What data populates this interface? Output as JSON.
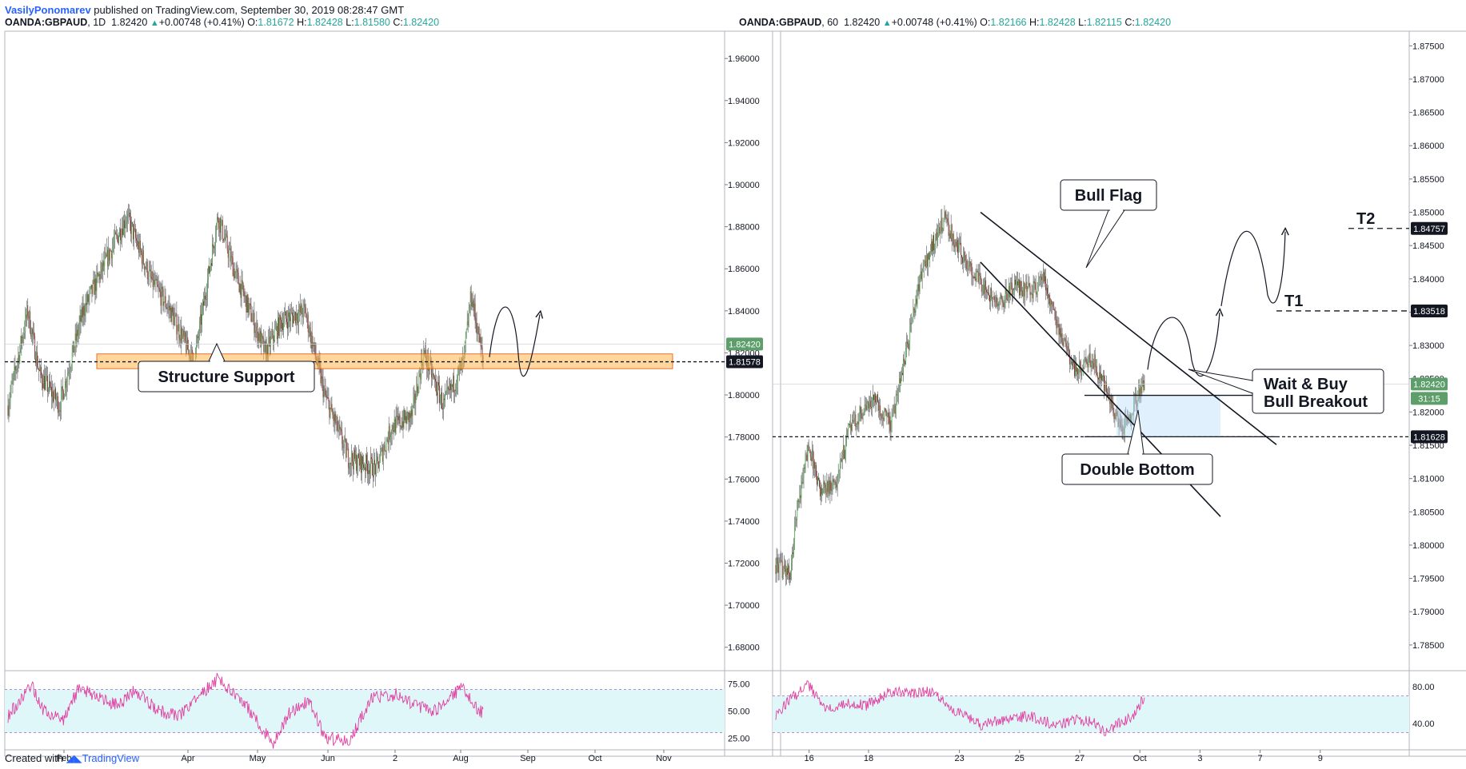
{
  "header": {
    "author": "VasilyPonomarev",
    "published_text": "published on TradingView.com, September 30, 2019 08:28:47 GMT"
  },
  "footer": {
    "created_with": "Created with",
    "brand": "TradingView"
  },
  "colors": {
    "up": "#26a69a",
    "down": "#ef5350",
    "candle_up_body": "#4caf50",
    "candle_down_body": "#8b1a1a",
    "rsi_line": "#e040a0",
    "rsi_band": "#e0f7fa",
    "support_zone": "#ffb74d",
    "target_box": "#bbdefb",
    "price_tag_green": "#5d9e6a",
    "price_tag_black": "#131722"
  },
  "chart_data": [
    {
      "type": "candlestick",
      "symbol": "OANDA:GBPAUD",
      "interval": "1D",
      "legend": {
        "last": "1.82420",
        "change": "+0.00748 (+0.41%)",
        "open": "1.81672",
        "high": "1.82428",
        "low": "1.81580",
        "close": "1.82420"
      },
      "y_ticks": [
        "1.96000",
        "1.94000",
        "1.92000",
        "1.90000",
        "1.88000",
        "1.86000",
        "1.84000",
        "1.82000",
        "1.80000",
        "1.78000",
        "1.76000",
        "1.74000",
        "1.72000",
        "1.70000",
        "1.68000"
      ],
      "ylim": [
        1.67,
        1.973
      ],
      "x_ticks": [
        "Feb",
        "Apr",
        "May",
        "Jun",
        "2",
        "Aug",
        "Sep",
        "Oct",
        "Nov"
      ],
      "price_tags": [
        {
          "value": 1.8242,
          "label": "1.82420",
          "style": "green"
        },
        {
          "value": 1.81578,
          "label": "1.81578",
          "style": "black"
        }
      ],
      "anchors": [
        [
          0,
          1.795
        ],
        [
          25,
          1.84
        ],
        [
          40,
          1.81
        ],
        [
          65,
          1.795
        ],
        [
          95,
          1.84
        ],
        [
          150,
          1.885
        ],
        [
          180,
          1.855
        ],
        [
          205,
          1.84
        ],
        [
          235,
          1.815
        ],
        [
          265,
          1.885
        ],
        [
          285,
          1.86
        ],
        [
          325,
          1.82
        ],
        [
          345,
          1.835
        ],
        [
          375,
          1.84
        ],
        [
          400,
          1.8
        ],
        [
          430,
          1.77
        ],
        [
          465,
          1.765
        ],
        [
          485,
          1.785
        ],
        [
          510,
          1.79
        ],
        [
          525,
          1.82
        ],
        [
          550,
          1.795
        ],
        [
          575,
          1.815
        ],
        [
          585,
          1.848
        ],
        [
          600,
          1.816
        ]
      ],
      "support_zone": [
        1.8125,
        1.8195
      ],
      "annotations": [
        {
          "text": "Structure Support"
        }
      ],
      "projection": [
        [
          1.8195,
          0
        ],
        [
          1.83,
          0.5
        ],
        [
          1.836,
          1
        ]
      ],
      "rsi": {
        "y_ticks": [
          "75.00",
          "50.00",
          "25.00"
        ],
        "ylim": [
          15,
          85
        ],
        "band": [
          30,
          70
        ],
        "anchors": [
          [
            0,
            45
          ],
          [
            30,
            75
          ],
          [
            45,
            50
          ],
          [
            70,
            42
          ],
          [
            90,
            72
          ],
          [
            115,
            62
          ],
          [
            140,
            55
          ],
          [
            160,
            70
          ],
          [
            190,
            50
          ],
          [
            215,
            45
          ],
          [
            265,
            80
          ],
          [
            300,
            55
          ],
          [
            335,
            20
          ],
          [
            355,
            48
          ],
          [
            380,
            60
          ],
          [
            400,
            25
          ],
          [
            430,
            22
          ],
          [
            460,
            62
          ],
          [
            490,
            65
          ],
          [
            515,
            55
          ],
          [
            540,
            50
          ],
          [
            555,
            62
          ],
          [
            575,
            72
          ],
          [
            590,
            55
          ],
          [
            600,
            48
          ]
        ]
      }
    },
    {
      "type": "candlestick",
      "symbol": "OANDA:GBPAUD",
      "interval": "60",
      "legend": {
        "last": "1.82420",
        "change": "+0.00748 (+0.41%)",
        "open": "1.82166",
        "high": "1.82428",
        "low": "1.82115",
        "close": "1.82420"
      },
      "y_ticks": [
        "1.87500",
        "1.87000",
        "1.86500",
        "1.86000",
        "1.85500",
        "1.85000",
        "1.84500",
        "1.84000",
        "1.83500",
        "1.83000",
        "1.82500",
        "1.82000",
        "1.81500",
        "1.81000",
        "1.80500",
        "1.80000",
        "1.79500",
        "1.79000",
        "1.78500"
      ],
      "ylim": [
        1.7815,
        1.8772
      ],
      "x_ticks": [
        "16",
        "18",
        "23",
        "25",
        "27",
        "Oct",
        "3",
        "7",
        "9"
      ],
      "price_tags": [
        {
          "value": 1.84757,
          "label": "1.84757",
          "style": "black"
        },
        {
          "value": 1.83518,
          "label": "1.83518",
          "style": "black"
        },
        {
          "value": 1.8242,
          "label": "1.82420",
          "style": "green"
        },
        {
          "value": 1.81628,
          "label": "1.81628",
          "style": "black"
        }
      ],
      "countdown": "31:15",
      "anchors": [
        [
          0,
          1.797
        ],
        [
          18,
          1.7955
        ],
        [
          25,
          1.805
        ],
        [
          40,
          1.815
        ],
        [
          55,
          1.808
        ],
        [
          75,
          1.81
        ],
        [
          90,
          1.818
        ],
        [
          120,
          1.822
        ],
        [
          140,
          1.818
        ],
        [
          160,
          1.83
        ],
        [
          175,
          1.84
        ],
        [
          190,
          1.845
        ],
        [
          205,
          1.849
        ],
        [
          225,
          1.844
        ],
        [
          245,
          1.84
        ],
        [
          270,
          1.836
        ],
        [
          290,
          1.839
        ],
        [
          310,
          1.838
        ],
        [
          325,
          1.84
        ],
        [
          345,
          1.832
        ],
        [
          365,
          1.826
        ],
        [
          385,
          1.828
        ],
        [
          405,
          1.822
        ],
        [
          420,
          1.817
        ],
        [
          435,
          1.821
        ],
        [
          448,
          1.8242
        ]
      ],
      "targets": [
        {
          "label": "T1",
          "value": 1.83518
        },
        {
          "label": "T2",
          "value": 1.84757
        }
      ],
      "support_line": 1.81628,
      "resistance_line": 1.8225,
      "channel": {
        "upper": [
          [
            1.85,
            0
          ],
          [
            1.8235,
            1
          ]
        ],
        "lower": [
          [
            1.8425,
            0
          ],
          [
            1.8115,
            1
          ]
        ]
      },
      "annotations": [
        {
          "text": "Bull Flag"
        },
        {
          "text": "Wait & Buy"
        },
        {
          "text": "Bull Breakout"
        },
        {
          "text": "Double Bottom"
        }
      ],
      "rsi": {
        "y_ticks": [
          "80.00",
          "40.00"
        ],
        "ylim": [
          12,
          95
        ],
        "band": [
          30,
          70
        ],
        "anchors": [
          [
            0,
            50
          ],
          [
            20,
            68
          ],
          [
            40,
            82
          ],
          [
            60,
            55
          ],
          [
            80,
            62
          ],
          [
            110,
            60
          ],
          [
            140,
            75
          ],
          [
            165,
            72
          ],
          [
            190,
            75
          ],
          [
            215,
            55
          ],
          [
            250,
            38
          ],
          [
            280,
            45
          ],
          [
            310,
            48
          ],
          [
            340,
            38
          ],
          [
            365,
            45
          ],
          [
            385,
            42
          ],
          [
            400,
            30
          ],
          [
            420,
            42
          ],
          [
            435,
            48
          ],
          [
            448,
            70
          ]
        ]
      }
    }
  ]
}
